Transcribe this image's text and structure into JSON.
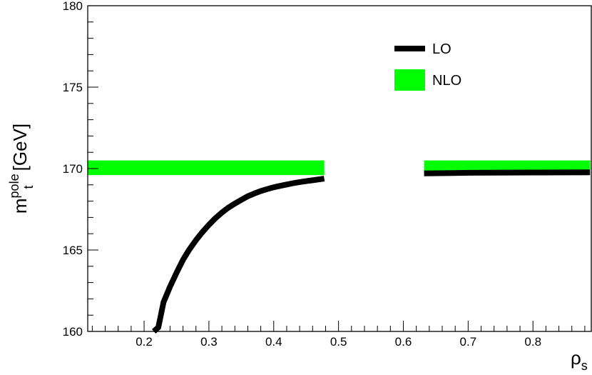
{
  "chart_data": {
    "type": "line",
    "title": "",
    "xlabel": {
      "main": "ρ",
      "sub": "s"
    },
    "ylabel": {
      "main": "m",
      "sub": "t",
      "sup": "pole",
      "unit": "[GeV]"
    },
    "xlim": [
      0.113,
      0.89
    ],
    "ylim": [
      160,
      180
    ],
    "xticks": [
      0.2,
      0.3,
      0.4,
      0.5,
      0.6,
      0.7,
      0.8
    ],
    "xtick_labels": [
      "0.2",
      "0.3",
      "0.4",
      "0.5",
      "0.6",
      "0.7",
      "0.8"
    ],
    "yticks": [
      160,
      165,
      170,
      175,
      180
    ],
    "ytick_labels": [
      "160",
      "165",
      "170",
      "175",
      "180"
    ],
    "grid": false,
    "legend_position": "top-right",
    "legend": [
      {
        "label": "LO",
        "style": "line"
      },
      {
        "label": "NLO",
        "style": "band"
      }
    ],
    "colors": {
      "LO": "#000000",
      "NLO": "#00ff00"
    },
    "series": [
      {
        "name": "LO",
        "style": "line",
        "segments": [
          {
            "x": [
              0.215,
              0.222,
              0.23,
              0.24,
              0.25,
              0.26,
              0.27,
              0.28,
              0.29,
              0.3,
              0.31,
              0.32,
              0.33,
              0.34,
              0.35,
              0.36,
              0.37,
              0.38,
              0.39,
              0.4,
              0.41,
              0.42,
              0.43,
              0.44,
              0.45,
              0.46,
              0.478
            ],
            "y": [
              160.0,
              160.25,
              161.8,
              162.75,
              163.6,
              164.4,
              165.05,
              165.6,
              166.1,
              166.55,
              166.95,
              167.3,
              167.6,
              167.85,
              168.08,
              168.3,
              168.47,
              168.62,
              168.74,
              168.85,
              168.94,
              169.02,
              169.1,
              169.17,
              169.23,
              169.28,
              169.38
            ]
          },
          {
            "x": [
              0.632,
              0.7,
              0.8,
              0.888
            ],
            "y": [
              169.7,
              169.74,
              169.76,
              169.77
            ]
          }
        ]
      },
      {
        "name": "NLO",
        "style": "band",
        "segments": [
          {
            "x": [
              0.113,
              0.478
            ],
            "y_low": 169.6,
            "y_high": 170.5
          },
          {
            "x": [
              0.632,
              0.888
            ],
            "y_low": 169.6,
            "y_high": 170.5
          }
        ]
      }
    ]
  }
}
